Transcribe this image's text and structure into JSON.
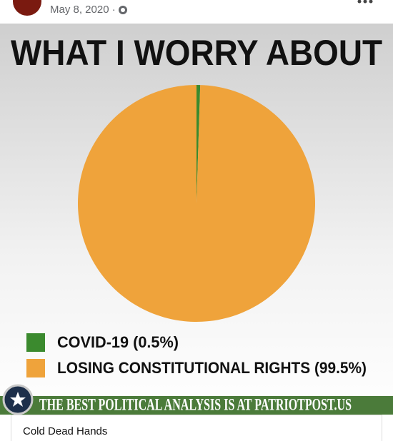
{
  "post": {
    "date": "May 8, 2020 ·",
    "link_title": "Cold Dead Hands"
  },
  "chart_data": {
    "type": "pie",
    "title": "WHAT I WORRY ABOUT",
    "categories": [
      "COVID-19 (0.5%)",
      "LOSING CONSTITUTIONAL RIGHTS (99.5%)"
    ],
    "values": [
      0.5,
      99.5
    ],
    "colors": [
      "#3b8a2e",
      "#efa33b"
    ]
  },
  "banner": {
    "text": "THE BEST POLITICAL ANALYSIS IS AT PATRIOTPOST.US"
  }
}
